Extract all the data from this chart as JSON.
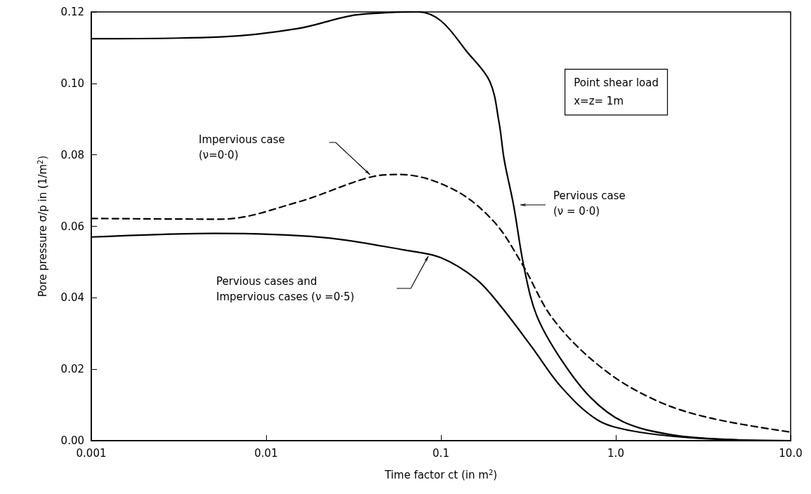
{
  "chart_data": {
    "type": "line",
    "xlabel": "Time factor ct (in m$^{2}$)",
    "ylabel": "Pore pressure σ/p in (1/m$^{2}$)",
    "log": "x",
    "marker": "none",
    "xlim": [
      0.001,
      10
    ],
    "xticks": [
      0.001,
      0.01,
      0.1,
      {
        "value": 1,
        "label": "1.0"
      },
      {
        "value": 10,
        "label": "10.0"
      }
    ],
    "ylim": [
      0,
      0.12
    ],
    "yticks": [
      {
        "value": 0,
        "label": "0.00"
      },
      0.02,
      0.04,
      0.06,
      0.08,
      {
        "value": 0.1,
        "label": "0.10"
      },
      0.12
    ],
    "series": [
      {
        "color": "#000000",
        "line_style": "solid",
        "x": [
          0.001,
          0.0055,
          0.015,
          0.031,
          0.05,
          0.074,
          0.1,
          0.14,
          0.19,
          0.215,
          0.23,
          0.26,
          0.3,
          0.355,
          0.49,
          0.72,
          1.1,
          2.0,
          4.0,
          10
        ],
        "values": [
          0.1125,
          0.113,
          0.1153,
          0.119,
          0.1198,
          0.12,
          0.1175,
          0.109,
          0.1006,
          0.089,
          0.0786,
          0.066,
          0.048,
          0.0347,
          0.0225,
          0.012,
          0.0053,
          0.0018,
          0.0004,
          0.0
        ]
      },
      {
        "color": "#000000",
        "line_style": "dashed",
        "x": [
          0.001,
          0.0055,
          0.015,
          0.039,
          0.058,
          0.117,
          0.2,
          0.29,
          0.44,
          0.84,
          1.71,
          3.5,
          10
        ],
        "values": [
          0.0622,
          0.062,
          0.0667,
          0.0737,
          0.0745,
          0.0704,
          0.0614,
          0.0496,
          0.0339,
          0.0202,
          0.0112,
          0.0063,
          0.0024
        ]
      },
      {
        "color": "#000000",
        "line_style": "solid",
        "x": [
          0.001,
          0.005,
          0.021,
          0.063,
          0.1,
          0.16,
          0.22,
          0.33,
          0.49,
          0.78,
          1.19,
          2.4,
          5,
          10
        ],
        "values": [
          0.057,
          0.058,
          0.0569,
          0.0533,
          0.0512,
          0.0451,
          0.0376,
          0.0263,
          0.0149,
          0.0059,
          0.0029,
          0.001,
          0.0002,
          0.0
        ]
      }
    ],
    "annotations": [
      "Impervious case\n(ν=0·0)",
      "Pervious case\n(ν = 0·0)",
      "Pervious cases and\nImpervious cases (ν =0·5)",
      "Point shear load\nx=z= 1m"
    ]
  }
}
